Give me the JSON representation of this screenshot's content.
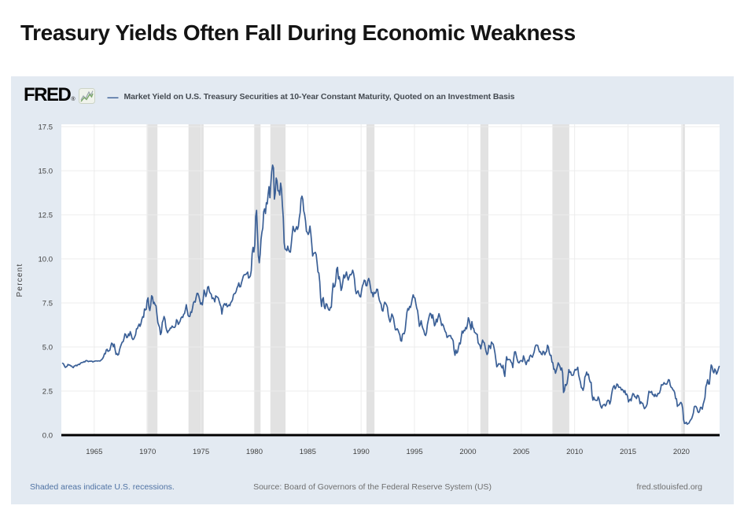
{
  "slide": {
    "title": "Treasury Yields Often Fall During Economic Weakness"
  },
  "fred": {
    "logo_text": "FRED",
    "logo_registered": "®",
    "legend_dash": "—",
    "legend_label": "Market Yield on U.S. Treasury Securities at 10-Year Constant Maturity, Quoted on an Investment Basis",
    "footer": {
      "recession_note": "Shaded areas indicate U.S. recessions.",
      "source": "Source: Board of Governors of the Federal Reserve System (US)",
      "site": "fred.stlouisfed.org"
    }
  },
  "colors": {
    "line": "#3a5f96",
    "widget_bg": "#e3eaf2",
    "plot_bg": "#ffffff",
    "recession_band": "#e2e2e2",
    "gridline": "#ececec",
    "axis": "#000000",
    "tick_label": "#3f3f3f",
    "footer_link": "#4f72a3",
    "footer_text": "#6e6e6e"
  },
  "chart_data": {
    "type": "line",
    "title": "Market Yield on U.S. Treasury Securities at 10-Year Constant Maturity, Quoted on an Investment Basis",
    "xlabel": "",
    "ylabel": "Percent",
    "unit": "percent",
    "grid": true,
    "legend_position": "top",
    "ylim": [
      0,
      17.5
    ],
    "y_ticks": [
      0.0,
      2.5,
      5.0,
      7.5,
      10.0,
      12.5,
      15.0,
      17.5
    ],
    "x_ticks": [
      1965,
      1970,
      1975,
      1980,
      1985,
      1990,
      1995,
      2000,
      2005,
      2010,
      2015,
      2020
    ],
    "x_range_years": [
      1961.92,
      2023.58
    ],
    "frequency": "monthly",
    "start": "1962-01",
    "end": "2023-07",
    "recessions": [
      {
        "start": 1969.92,
        "end": 1970.92
      },
      {
        "start": 1973.83,
        "end": 1975.25
      },
      {
        "start": 1980.0,
        "end": 1980.58
      },
      {
        "start": 1981.5,
        "end": 1982.92
      },
      {
        "start": 1990.5,
        "end": 1991.25
      },
      {
        "start": 2001.17,
        "end": 2001.92
      },
      {
        "start": 2007.92,
        "end": 2009.5
      },
      {
        "start": 2020.08,
        "end": 2020.33
      }
    ],
    "values": [
      4.08,
      4.04,
      3.93,
      3.84,
      3.87,
      3.91,
      4.01,
      3.98,
      3.98,
      3.93,
      3.92,
      3.86,
      3.83,
      3.92,
      3.93,
      3.97,
      3.93,
      3.99,
      4.02,
      4.0,
      4.08,
      4.11,
      4.12,
      4.13,
      4.17,
      4.15,
      4.22,
      4.23,
      4.2,
      4.17,
      4.19,
      4.19,
      4.2,
      4.19,
      4.15,
      4.18,
      4.19,
      4.21,
      4.21,
      4.2,
      4.21,
      4.21,
      4.2,
      4.25,
      4.29,
      4.35,
      4.45,
      4.62,
      4.61,
      4.83,
      4.87,
      4.75,
      4.78,
      4.81,
      5.02,
      5.22,
      5.18,
      5.01,
      5.16,
      4.84,
      4.58,
      4.63,
      4.54,
      4.59,
      4.85,
      5.02,
      5.16,
      5.28,
      5.3,
      5.48,
      5.75,
      5.7,
      5.53,
      5.56,
      5.74,
      5.64,
      5.87,
      5.72,
      5.5,
      5.42,
      5.46,
      5.58,
      5.7,
      6.03,
      6.04,
      6.19,
      6.3,
      6.17,
      6.32,
      6.57,
      6.72,
      6.69,
      7.16,
      7.1,
      7.14,
      7.65,
      7.79,
      7.24,
      7.07,
      7.39,
      7.91,
      7.84,
      7.46,
      7.53,
      7.39,
      7.33,
      6.84,
      6.39,
      6.24,
      6.11,
      5.7,
      5.83,
      6.39,
      6.52,
      6.73,
      6.58,
      6.14,
      5.93,
      5.81,
      5.93,
      5.95,
      6.08,
      6.07,
      6.19,
      6.13,
      6.11,
      6.11,
      6.21,
      6.55,
      6.48,
      6.28,
      6.36,
      6.46,
      6.64,
      6.71,
      6.67,
      6.85,
      6.9,
      7.13,
      7.4,
      7.09,
      6.79,
      6.73,
      6.74,
      6.99,
      6.96,
      7.21,
      7.51,
      7.58,
      7.54,
      7.81,
      8.04,
      8.04,
      7.9,
      7.68,
      7.43,
      7.5,
      7.39,
      7.73,
      8.23,
      8.06,
      7.86,
      8.06,
      8.4,
      8.43,
      8.14,
      8.05,
      8.0,
      7.74,
      7.79,
      7.73,
      7.56,
      7.9,
      7.86,
      7.83,
      7.77,
      7.59,
      7.41,
      7.29,
      6.87,
      7.21,
      7.39,
      7.46,
      7.37,
      7.46,
      7.28,
      7.33,
      7.4,
      7.34,
      7.52,
      7.58,
      7.69,
      7.96,
      8.03,
      8.04,
      8.15,
      8.35,
      8.46,
      8.64,
      8.41,
      8.42,
      8.64,
      8.81,
      9.01,
      9.1,
      9.1,
      9.12,
      9.18,
      9.25,
      8.91,
      8.95,
      9.03,
      9.33,
      10.3,
      10.65,
      10.39,
      10.8,
      12.41,
      12.75,
      11.47,
      10.18,
      9.78,
      10.25,
      11.1,
      11.51,
      11.75,
      12.68,
      12.84,
      12.57,
      13.19,
      13.12,
      13.68,
      14.1,
      13.47,
      14.28,
      14.94,
      15.32,
      15.15,
      13.39,
      13.72,
      14.59,
      14.43,
      13.86,
      13.87,
      13.62,
      14.3,
      13.95,
      13.06,
      12.34,
      10.91,
      10.55,
      10.54,
      10.46,
      10.72,
      10.51,
      10.4,
      10.38,
      10.85,
      11.38,
      11.85,
      11.65,
      11.54,
      11.69,
      11.83,
      11.67,
      11.84,
      12.32,
      12.63,
      13.41,
      13.56,
      13.36,
      12.72,
      12.52,
      12.16,
      11.57,
      11.5,
      11.38,
      11.51,
      11.86,
      11.43,
      10.85,
      10.16,
      10.31,
      10.33,
      10.37,
      10.24,
      9.78,
      9.26,
      9.19,
      8.7,
      7.78,
      7.3,
      7.71,
      7.8,
      7.3,
      7.17,
      7.45,
      7.43,
      7.25,
      7.11,
      7.08,
      7.25,
      7.25,
      8.02,
      8.61,
      8.4,
      8.45,
      8.76,
      9.42,
      9.52,
      8.86,
      8.99,
      8.67,
      8.21,
      8.37,
      8.72,
      9.09,
      8.92,
      9.06,
      9.26,
      8.98,
      8.8,
      8.96,
      9.11,
      9.09,
      9.17,
      9.36,
      9.18,
      8.86,
      8.28,
      8.02,
      8.11,
      8.19,
      8.01,
      7.87,
      7.84,
      8.21,
      8.47,
      8.59,
      8.79,
      8.76,
      8.48,
      8.47,
      8.75,
      8.89,
      8.72,
      8.39,
      8.08,
      8.09,
      7.85,
      8.11,
      8.04,
      8.07,
      8.28,
      8.27,
      7.9,
      7.65,
      7.53,
      7.42,
      7.09,
      7.03,
      7.34,
      7.54,
      7.48,
      7.39,
      7.26,
      6.84,
      6.59,
      6.42,
      6.59,
      6.87,
      6.77,
      6.6,
      6.26,
      5.98,
      5.97,
      6.04,
      5.96,
      5.81,
      5.68,
      5.36,
      5.33,
      5.72,
      5.77,
      5.75,
      5.97,
      6.48,
      6.97,
      7.18,
      7.1,
      7.3,
      7.24,
      7.46,
      7.74,
      7.96,
      7.81,
      7.78,
      7.47,
      7.2,
      7.06,
      6.63,
      6.17,
      6.28,
      6.49,
      6.2,
      6.04,
      5.93,
      5.71,
      5.65,
      5.81,
      6.27,
      6.51,
      6.74,
      6.91,
      6.87,
      6.64,
      6.83,
      6.53,
      6.2,
      6.3,
      6.58,
      6.42,
      6.69,
      6.89,
      6.71,
      6.49,
      6.22,
      6.3,
      6.21,
      6.03,
      5.88,
      5.81,
      5.54,
      5.57,
      5.65,
      5.64,
      5.65,
      5.5,
      5.46,
      5.34,
      4.81,
      4.53,
      4.83,
      4.65,
      4.72,
      5.0,
      5.23,
      5.18,
      5.54,
      5.9,
      5.79,
      5.94,
      5.92,
      6.11,
      6.03,
      6.28,
      6.66,
      6.52,
      6.26,
      5.99,
      6.44,
      6.1,
      6.05,
      5.83,
      5.8,
      5.74,
      5.72,
      5.24,
      5.16,
      5.1,
      4.89,
      5.14,
      5.39,
      5.28,
      5.24,
      4.97,
      4.73,
      4.57,
      4.65,
      5.09,
      5.04,
      4.91,
      5.28,
      5.21,
      5.16,
      4.93,
      4.65,
      4.26,
      3.87,
      3.94,
      4.05,
      4.03,
      4.05,
      3.9,
      3.81,
      3.96,
      3.57,
      3.33,
      3.98,
      4.45,
      4.27,
      4.29,
      4.3,
      4.27,
      4.15,
      4.08,
      3.83,
      4.35,
      4.72,
      4.73,
      4.5,
      4.28,
      4.13,
      4.1,
      4.19,
      4.23,
      4.22,
      4.17,
      4.5,
      4.34,
      4.14,
      4.0,
      4.18,
      4.26,
      4.2,
      4.46,
      4.54,
      4.47,
      4.42,
      4.57,
      4.72,
      4.99,
      5.11,
      5.11,
      5.09,
      4.88,
      4.72,
      4.73,
      4.6,
      4.56,
      4.76,
      4.72,
      4.56,
      4.69,
      4.75,
      5.1,
      5.0,
      4.67,
      4.52,
      4.53,
      4.15,
      4.1,
      3.74,
      3.74,
      3.51,
      3.68,
      3.88,
      4.1,
      4.01,
      3.89,
      3.69,
      3.81,
      3.53,
      2.42,
      2.52,
      2.87,
      2.82,
      2.93,
      3.29,
      3.72,
      3.56,
      3.59,
      3.4,
      3.39,
      3.4,
      3.59,
      3.73,
      3.69,
      3.73,
      3.85,
      3.42,
      3.2,
      3.01,
      2.7,
      2.65,
      2.54,
      2.76,
      3.29,
      3.39,
      3.58,
      3.41,
      3.46,
      3.17,
      3.0,
      3.0,
      2.3,
      1.98,
      2.15,
      2.01,
      1.98,
      1.97,
      1.97,
      2.17,
      2.05,
      1.8,
      1.62,
      1.53,
      1.68,
      1.72,
      1.75,
      1.65,
      1.72,
      1.91,
      1.98,
      1.96,
      1.76,
      1.93,
      2.3,
      2.58,
      2.74,
      2.81,
      2.62,
      2.72,
      2.9,
      2.86,
      2.71,
      2.72,
      2.71,
      2.56,
      2.6,
      2.54,
      2.42,
      2.53,
      2.3,
      2.33,
      2.21,
      1.88,
      1.98,
      2.04,
      1.94,
      2.2,
      2.36,
      2.32,
      2.17,
      2.17,
      2.07,
      2.26,
      2.24,
      2.09,
      1.78,
      1.89,
      1.81,
      1.81,
      1.64,
      1.5,
      1.56,
      1.63,
      1.76,
      2.14,
      2.49,
      2.43,
      2.42,
      2.48,
      2.3,
      2.3,
      2.19,
      2.32,
      2.21,
      2.2,
      2.36,
      2.35,
      2.4,
      2.58,
      2.86,
      2.84,
      2.87,
      2.98,
      2.91,
      2.89,
      2.89,
      3.0,
      3.15,
      3.12,
      2.83,
      2.71,
      2.68,
      2.57,
      2.53,
      2.4,
      2.07,
      2.06,
      1.63,
      1.7,
      1.71,
      1.81,
      1.86,
      1.76,
      1.5,
      0.87,
      0.66,
      0.67,
      0.73,
      0.62,
      0.65,
      0.68,
      0.79,
      0.87,
      0.93,
      1.08,
      1.26,
      1.61,
      1.64,
      1.62,
      1.52,
      1.32,
      1.28,
      1.37,
      1.58,
      1.56,
      1.47,
      1.76,
      1.93,
      2.13,
      2.75,
      2.9,
      3.14,
      2.9,
      2.9,
      3.52,
      3.98,
      3.89,
      3.62,
      3.53,
      3.75,
      3.66,
      3.46,
      3.57,
      3.75,
      3.9
    ]
  }
}
